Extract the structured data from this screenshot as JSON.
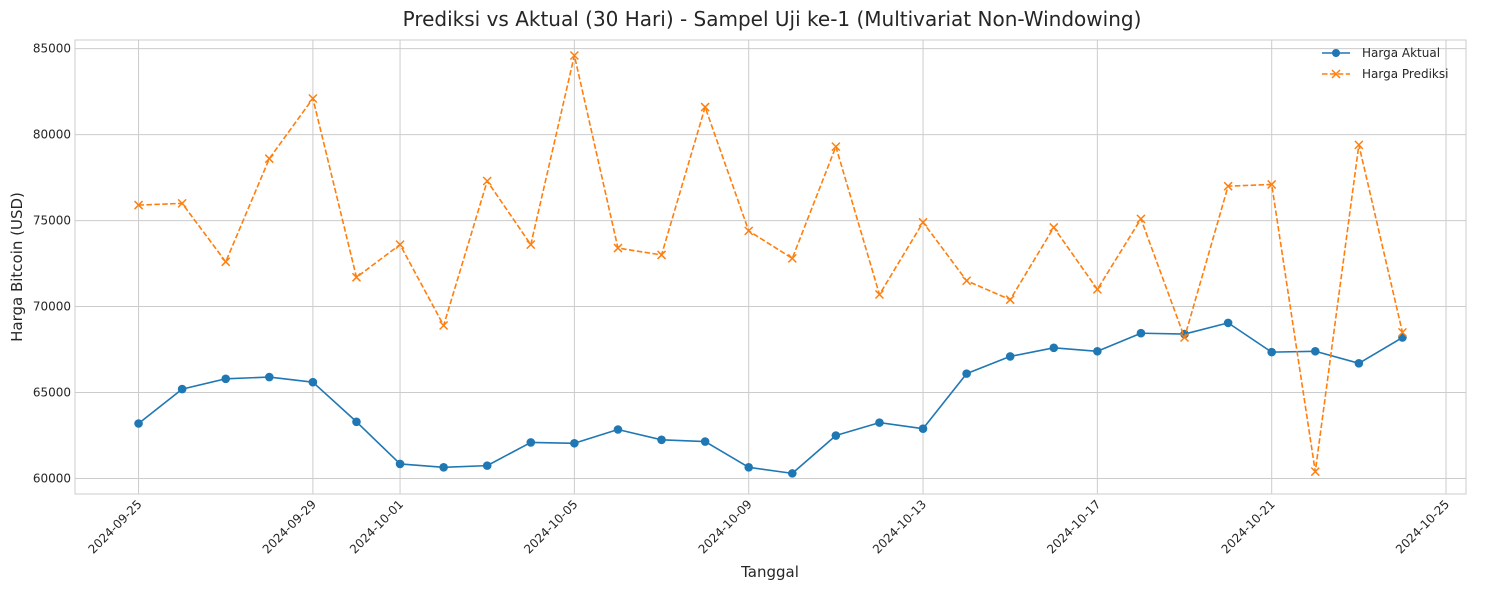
{
  "chart_data": {
    "type": "line",
    "title": "Prediksi vs Aktual (30 Hari) - Sampel Uji ke-1 (Multivariat Non-Windowing)",
    "xlabel": "Tanggal",
    "ylabel": "Harga Bitcoin (USD)",
    "x": [
      "2024-09-25",
      "2024-09-26",
      "2024-09-27",
      "2024-09-28",
      "2024-09-29",
      "2024-09-30",
      "2024-10-01",
      "2024-10-02",
      "2024-10-03",
      "2024-10-04",
      "2024-10-05",
      "2024-10-06",
      "2024-10-07",
      "2024-10-08",
      "2024-10-09",
      "2024-10-10",
      "2024-10-11",
      "2024-10-12",
      "2024-10-13",
      "2024-10-14",
      "2024-10-15",
      "2024-10-16",
      "2024-10-17",
      "2024-10-18",
      "2024-10-19",
      "2024-10-20",
      "2024-10-21",
      "2024-10-22",
      "2024-10-23",
      "2024-10-24"
    ],
    "xlim": [
      "2024-09-23T13:00",
      "2024-10-25T11:00"
    ],
    "ylim": [
      59100,
      85500
    ],
    "x_ticks": [
      "2024-09-25",
      "2024-09-29",
      "2024-10-01",
      "2024-10-05",
      "2024-10-09",
      "2024-10-13",
      "2024-10-17",
      "2024-10-21",
      "2024-10-25"
    ],
    "y_ticks": [
      60000,
      65000,
      70000,
      75000,
      80000,
      85000
    ],
    "grid": true,
    "legend_position": "top-right",
    "series": [
      {
        "name": "Harga Aktual",
        "color": "#1f77b4",
        "line_style": "solid",
        "marker": "circle",
        "values": [
          63200,
          65200,
          65800,
          65900,
          65600,
          63300,
          60850,
          60650,
          60750,
          62100,
          62050,
          62850,
          62250,
          62150,
          60650,
          60300,
          62500,
          63250,
          62900,
          66100,
          67100,
          67600,
          67400,
          68450,
          68400,
          69050,
          67350,
          67400,
          66700,
          68200
        ]
      },
      {
        "name": "Harga Prediksi",
        "color": "#ff7f0e",
        "line_style": "dashed",
        "marker": "x",
        "values": [
          75900,
          76000,
          72600,
          78600,
          82100,
          71700,
          73600,
          68900,
          77300,
          73600,
          84600,
          73400,
          73000,
          81600,
          74400,
          72800,
          79300,
          70700,
          74900,
          71500,
          70400,
          74600,
          71000,
          75100,
          68200,
          77000,
          77100,
          60400,
          79400,
          68500
        ]
      }
    ]
  }
}
